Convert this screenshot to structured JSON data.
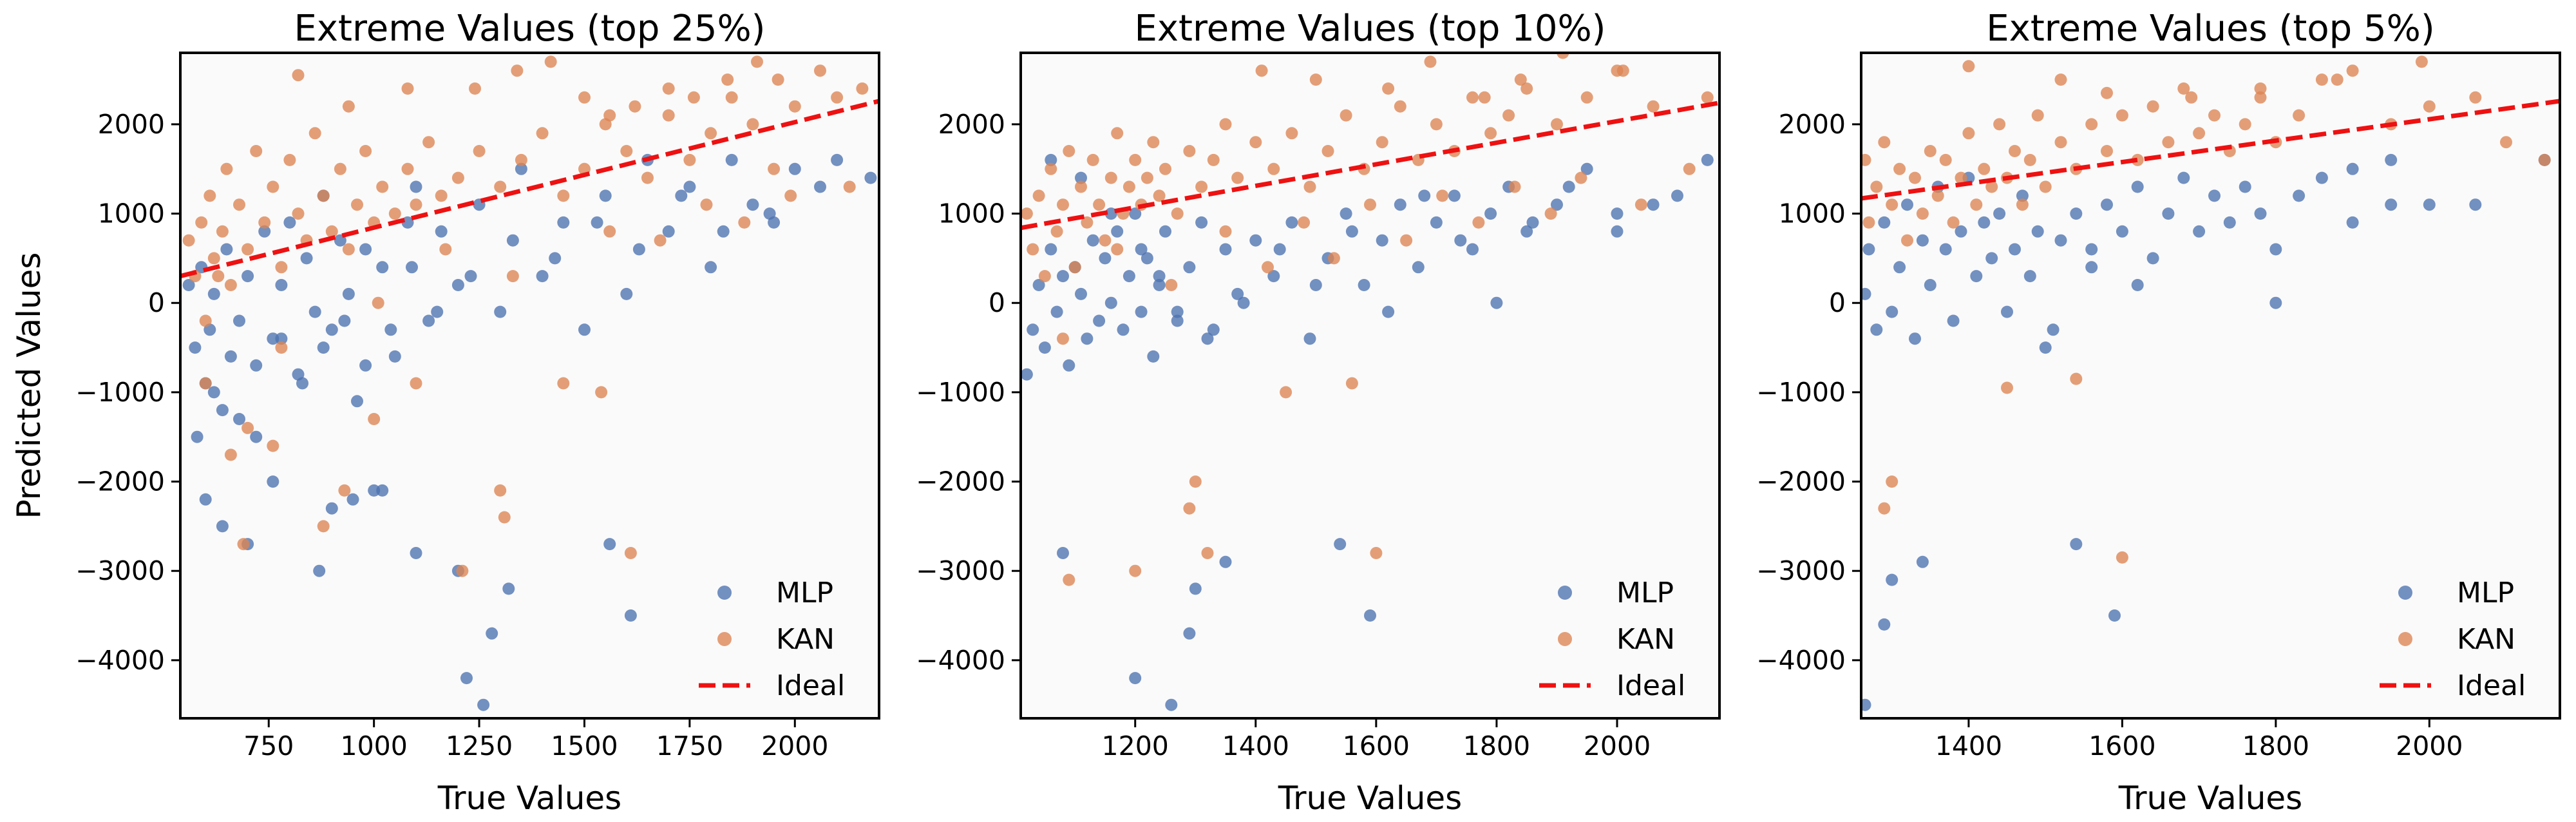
{
  "colors": {
    "mlp": "#4c72b0",
    "kan": "#dd8452",
    "ideal": "#ee1111",
    "plot_bg": "#fafafa"
  },
  "chart_data": [
    {
      "type": "scatter",
      "title": "Extreme Values (top 25%)",
      "xlabel": "True Values",
      "ylabel": "Predicted Values",
      "xlim": [
        540,
        2200
      ],
      "ylim": [
        -4650,
        2800
      ],
      "xticks": [
        750,
        1000,
        1250,
        1500,
        1750,
        2000
      ],
      "yticks": [
        -4000,
        -3000,
        -2000,
        -1000,
        0,
        1000,
        2000
      ],
      "legend": [
        "MLP",
        "KAN",
        "Ideal"
      ],
      "legend_position": "lower-right",
      "ideal_line": {
        "x": [
          540,
          2200
        ],
        "y": [
          300,
          2260
        ]
      },
      "series": [
        {
          "name": "MLP",
          "x": [
            560,
            575,
            590,
            600,
            610,
            620,
            640,
            650,
            660,
            680,
            700,
            720,
            740,
            760,
            780,
            800,
            820,
            840,
            860,
            880,
            900,
            920,
            940,
            960,
            980,
            1000,
            1020,
            1050,
            1080,
            1100,
            1130,
            1160,
            1200,
            1250,
            1300,
            1350,
            1400,
            1450,
            1500,
            1550,
            1600,
            1650,
            1700,
            1750,
            1800,
            1850,
            1900,
            1950,
            2000,
            2100,
            600,
            640,
            700,
            760,
            900,
            950,
            1020,
            1100,
            1200,
            1220,
            1260,
            1280,
            1320,
            1560,
            1610,
            870,
            580,
            620,
            680,
            720,
            780,
            830,
            880,
            930,
            980,
            1040,
            1090,
            1150,
            1230,
            1330,
            1430,
            1530,
            1630,
            1730,
            1830,
            1940,
            2060,
            2180
          ],
          "y": [
            200,
            -500,
            400,
            -900,
            -300,
            100,
            -1200,
            600,
            -600,
            -200,
            300,
            -1500,
            800,
            -400,
            200,
            900,
            -800,
            500,
            -100,
            1200,
            -300,
            700,
            100,
            -1100,
            600,
            -2100,
            400,
            -600,
            900,
            1300,
            -200,
            800,
            200,
            1100,
            -100,
            1500,
            300,
            900,
            -300,
            1200,
            100,
            1600,
            800,
            1300,
            400,
            1600,
            1100,
            900,
            1500,
            1600,
            -2200,
            -2500,
            -2700,
            -2000,
            -2300,
            -2200,
            -2100,
            -2800,
            -3000,
            -4200,
            -4500,
            -3700,
            -3200,
            -2700,
            -3500,
            -3000,
            -1500,
            -1000,
            -1300,
            -700,
            -400,
            -900,
            -500,
            -200,
            -700,
            -300,
            400,
            -100,
            300,
            700,
            500,
            900,
            600,
            1200,
            800,
            1000,
            1300,
            1400
          ]
        },
        {
          "name": "KAN",
          "x": [
            560,
            575,
            590,
            600,
            610,
            620,
            640,
            650,
            660,
            680,
            700,
            720,
            740,
            760,
            780,
            800,
            820,
            840,
            860,
            880,
            900,
            920,
            940,
            960,
            980,
            1000,
            1020,
            1050,
            1080,
            1100,
            1130,
            1160,
            1200,
            1250,
            1300,
            1350,
            1400,
            1450,
            1500,
            1550,
            1600,
            1650,
            1700,
            1750,
            1800,
            1850,
            1900,
            1950,
            2000,
            2100,
            820,
            940,
            1080,
            1240,
            1340,
            1420,
            1500,
            1560,
            1620,
            1700,
            1760,
            1840,
            1910,
            1960,
            2060,
            2160,
            660,
            690,
            880,
            930,
            1210,
            1300,
            1310,
            1610,
            600,
            700,
            760,
            1100,
            1000,
            1450,
            1540,
            630,
            780,
            1010,
            1170,
            1330,
            1560,
            1680,
            1790,
            1880,
            1990,
            2130
          ],
          "y": [
            700,
            300,
            900,
            -200,
            1200,
            500,
            800,
            1500,
            200,
            1100,
            600,
            1700,
            900,
            1300,
            400,
            1600,
            1000,
            700,
            1900,
            1200,
            800,
            1500,
            600,
            1100,
            1700,
            900,
            1300,
            1000,
            1500,
            1100,
            1800,
            1200,
            1400,
            1700,
            1300,
            1600,
            1900,
            1200,
            1500,
            2000,
            1700,
            1400,
            2100,
            1600,
            1900,
            2300,
            2000,
            1500,
            2200,
            2300,
            2550,
            2200,
            2400,
            2400,
            2600,
            2700,
            2300,
            2100,
            2200,
            2400,
            2300,
            2500,
            2700,
            2500,
            2600,
            2400,
            -1700,
            -2700,
            -2500,
            -2100,
            -3000,
            -2100,
            -2400,
            -2800,
            -900,
            -1400,
            -1600,
            -900,
            -1300,
            -900,
            -1000,
            300,
            -500,
            0,
            600,
            300,
            800,
            700,
            1100,
            900,
            1200,
            1300
          ]
        }
      ]
    },
    {
      "type": "scatter",
      "title": "Extreme Values (top 10%)",
      "xlabel": "True Values",
      "ylabel": "",
      "xlim": [
        1010,
        2170
      ],
      "ylim": [
        -4650,
        2800
      ],
      "xticks": [
        1200,
        1400,
        1600,
        1800,
        2000
      ],
      "yticks": [
        -4000,
        -3000,
        -2000,
        -1000,
        0,
        1000,
        2000
      ],
      "legend": [
        "MLP",
        "KAN",
        "Ideal"
      ],
      "legend_position": "lower-right",
      "ideal_line": {
        "x": [
          1010,
          2170
        ],
        "y": [
          840,
          2240
        ]
      },
      "series": [
        {
          "name": "MLP",
          "x": [
            1020,
            1030,
            1040,
            1050,
            1060,
            1070,
            1080,
            1090,
            1100,
            1110,
            1120,
            1130,
            1140,
            1150,
            1160,
            1170,
            1180,
            1190,
            1200,
            1210,
            1220,
            1230,
            1240,
            1250,
            1270,
            1290,
            1310,
            1330,
            1350,
            1370,
            1400,
            1430,
            1460,
            1490,
            1520,
            1550,
            1580,
            1610,
            1640,
            1670,
            1700,
            1730,
            1760,
            1790,
            1820,
            1850,
            1900,
            1950,
            2000,
            2060,
            2150,
            1080,
            1200,
            1260,
            1290,
            1300,
            1350,
            1540,
            1590,
            1210,
            1270,
            1110,
            1060,
            1160,
            1240,
            1320,
            1380,
            1440,
            1500,
            1560,
            1620,
            1680,
            1740,
            1800,
            1860,
            1920,
            2000,
            2100
          ],
          "y": [
            -800,
            -300,
            200,
            -500,
            600,
            -100,
            300,
            -700,
            400,
            100,
            -400,
            700,
            -200,
            500,
            0,
            800,
            -300,
            300,
            1000,
            -100,
            500,
            -600,
            200,
            800,
            -200,
            400,
            900,
            -300,
            600,
            100,
            700,
            300,
            900,
            -400,
            500,
            1000,
            200,
            700,
            1100,
            400,
            900,
            1200,
            600,
            1000,
            1300,
            800,
            1100,
            1500,
            1000,
            1100,
            1600,
            -2800,
            -4200,
            -4500,
            -3700,
            -3200,
            -2900,
            -2700,
            -3500,
            600,
            -100,
            1400,
            1600,
            1000,
            300,
            -400,
            0,
            600,
            200,
            800,
            -100,
            1200,
            700,
            0,
            900,
            1300,
            800,
            1200
          ]
        },
        {
          "name": "KAN",
          "x": [
            1020,
            1030,
            1040,
            1050,
            1060,
            1070,
            1080,
            1090,
            1100,
            1110,
            1120,
            1130,
            1140,
            1150,
            1160,
            1170,
            1180,
            1190,
            1200,
            1210,
            1220,
            1230,
            1240,
            1250,
            1270,
            1290,
            1310,
            1330,
            1350,
            1370,
            1400,
            1430,
            1460,
            1490,
            1520,
            1550,
            1580,
            1610,
            1640,
            1670,
            1700,
            1730,
            1760,
            1790,
            1820,
            1850,
            1900,
            1950,
            2000,
            2060,
            2150,
            1090,
            1200,
            1300,
            1320,
            1290,
            1600,
            1450,
            1560,
            1080,
            1410,
            1500,
            1620,
            1690,
            1780,
            1840,
            1910,
            2010,
            1170,
            1260,
            1350,
            1420,
            1480,
            1530,
            1590,
            1650,
            1710,
            1770,
            1830,
            1890,
            1940,
            2040,
            2120
          ],
          "y": [
            1000,
            600,
            1200,
            300,
            1500,
            800,
            1100,
            1700,
            400,
            1300,
            900,
            1600,
            1100,
            700,
            1400,
            1900,
            1000,
            1300,
            1600,
            1100,
            1400,
            1800,
            1200,
            1500,
            1000,
            1700,
            1300,
            1600,
            2000,
            1400,
            1800,
            1500,
            1900,
            1300,
            1700,
            2100,
            1500,
            1800,
            2200,
            1600,
            2000,
            1700,
            2300,
            1900,
            2100,
            2400,
            2000,
            2300,
            2600,
            2200,
            2300,
            -3100,
            -3000,
            -2000,
            -2800,
            -2300,
            -2800,
            -1000,
            -900,
            -400,
            2600,
            2500,
            2400,
            2700,
            2300,
            2500,
            2800,
            2600,
            600,
            200,
            800,
            400,
            900,
            500,
            1100,
            700,
            1200,
            900,
            1300,
            1000,
            1400,
            1100,
            1500
          ]
        }
      ]
    },
    {
      "type": "scatter",
      "title": "Extreme Values (top 5%)",
      "xlabel": "True Values",
      "ylabel": "",
      "xlim": [
        1260,
        2170
      ],
      "ylim": [
        -4650,
        2800
      ],
      "xticks": [
        1400,
        1600,
        1800,
        2000
      ],
      "yticks": [
        -4000,
        -3000,
        -2000,
        -1000,
        0,
        1000,
        2000
      ],
      "legend": [
        "MLP",
        "KAN",
        "Ideal"
      ],
      "legend_position": "lower-right",
      "ideal_line": {
        "x": [
          1260,
          2170
        ],
        "y": [
          1170,
          2260
        ]
      },
      "series": [
        {
          "name": "MLP",
          "x": [
            1265,
            1270,
            1280,
            1290,
            1300,
            1310,
            1320,
            1330,
            1340,
            1350,
            1360,
            1370,
            1380,
            1390,
            1400,
            1410,
            1420,
            1430,
            1440,
            1450,
            1460,
            1470,
            1480,
            1490,
            1500,
            1520,
            1540,
            1560,
            1580,
            1600,
            1620,
            1640,
            1660,
            1680,
            1700,
            1720,
            1740,
            1760,
            1780,
            1800,
            1830,
            1860,
            1900,
            1950,
            2000,
            2060,
            2150,
            1265,
            1290,
            1300,
            1340,
            1540,
            1590,
            1800,
            1510,
            1560,
            1620,
            1900,
            1950
          ],
          "y": [
            100,
            600,
            -300,
            900,
            -100,
            400,
            1100,
            -400,
            700,
            200,
            1300,
            600,
            -200,
            800,
            1400,
            300,
            900,
            500,
            1000,
            -100,
            600,
            1200,
            300,
            800,
            -500,
            700,
            1000,
            400,
            1100,
            800,
            1300,
            500,
            1000,
            1400,
            800,
            1200,
            900,
            1300,
            1000,
            600,
            1200,
            1400,
            1500,
            1600,
            1100,
            1100,
            1600,
            -4500,
            -3600,
            -3100,
            -2900,
            -2700,
            -3500,
            0,
            -300,
            600,
            200,
            900,
            1100
          ]
        },
        {
          "name": "KAN",
          "x": [
            1265,
            1270,
            1280,
            1290,
            1300,
            1310,
            1320,
            1330,
            1340,
            1350,
            1360,
            1370,
            1380,
            1390,
            1400,
            1410,
            1420,
            1430,
            1440,
            1450,
            1460,
            1470,
            1480,
            1490,
            1500,
            1520,
            1540,
            1560,
            1580,
            1600,
            1620,
            1640,
            1660,
            1680,
            1700,
            1720,
            1740,
            1760,
            1780,
            1800,
            1830,
            1860,
            1900,
            1950,
            2000,
            2060,
            2150,
            1290,
            1300,
            1450,
            1540,
            1600,
            1400,
            1520,
            1580,
            1690,
            1780,
            1880,
            1990,
            2100
          ],
          "y": [
            1600,
            900,
            1300,
            1800,
            1100,
            1500,
            700,
            1400,
            1000,
            1700,
            1200,
            1600,
            900,
            1400,
            1900,
            1100,
            1500,
            1300,
            2000,
            1400,
            1700,
            1100,
            1600,
            2100,
            1300,
            1800,
            1500,
            2000,
            1700,
            2100,
            1600,
            2200,
            1800,
            2400,
            1900,
            2100,
            1700,
            2000,
            2300,
            1800,
            2100,
            2500,
            2600,
            2000,
            2200,
            2300,
            1600,
            -2300,
            -2000,
            -950,
            -850,
            -2850,
            2650,
            2500,
            2350,
            2300,
            2400,
            2500,
            2700,
            1800
          ]
        }
      ]
    }
  ]
}
